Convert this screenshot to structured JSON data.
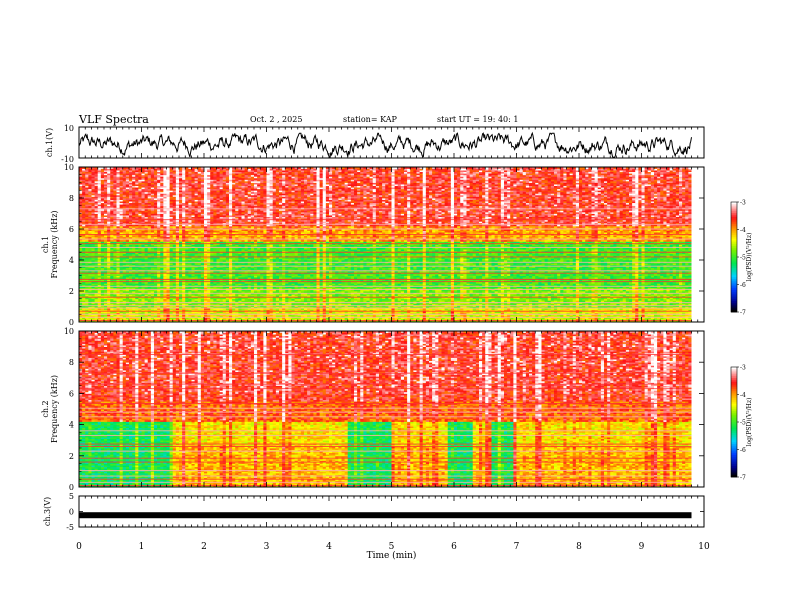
{
  "header": {
    "title": "VLF Spectra",
    "date": "Oct. 2 , 2025",
    "station": "station= KAP",
    "start": "start UT =  19: 40: 1"
  },
  "chart_data": [
    {
      "type": "line",
      "panel": "ch1-waveform",
      "ylabel": "ch.1(V)",
      "ylim": [
        -10,
        10
      ],
      "yticks": [
        10,
        -10
      ],
      "xlim": [
        0,
        10
      ],
      "data_end_min": 9.8,
      "color": "#000000"
    },
    {
      "type": "heatmap",
      "panel": "ch1-spectrogram",
      "ylabel": "ch.1 Frequency (kHz)",
      "ylim": [
        0,
        10
      ],
      "yticks": [
        0,
        2,
        4,
        6,
        8,
        10
      ],
      "xlim": [
        0,
        10
      ],
      "data_end_min": 9.8,
      "colorbar": {
        "label": "log(PSD)(V²/Hz)",
        "ticks": [
          -3,
          -4,
          -5,
          -6,
          -7
        ],
        "range": [
          -7,
          -3
        ]
      },
      "lines_khz": [
        0.1,
        0.3,
        0.5,
        0.7,
        0.9,
        1.05,
        1.25,
        1.6,
        1.85,
        2.1,
        2.3,
        2.6,
        2.75,
        3.15,
        3.3,
        3.6,
        3.85,
        4.2,
        4.5,
        4.8,
        5.05,
        5.35,
        5.65,
        6.0,
        6.3,
        6.6,
        7.3
      ]
    },
    {
      "type": "heatmap",
      "panel": "ch2-spectrogram",
      "ylabel": "ch.2 Frequency (kHz)",
      "ylim": [
        0,
        10
      ],
      "yticks": [
        0,
        2,
        4,
        6,
        8,
        10
      ],
      "xlim": [
        0,
        10
      ],
      "data_end_min": 9.8,
      "colorbar": {
        "label": "log(PSD)(V²/Hz)",
        "ticks": [
          -3,
          -4,
          -5,
          -6,
          -7
        ],
        "range": [
          -7,
          -3
        ]
      },
      "quiet_segments_min": [
        [
          0,
          1.5
        ],
        [
          4.3,
          5.0
        ],
        [
          5.9,
          6.3
        ],
        [
          6.6,
          6.95
        ]
      ],
      "lines_khz": [
        0.1,
        0.3,
        0.5,
        0.7,
        1.05,
        1.6,
        1.85,
        2.3,
        2.6,
        2.75,
        3.3,
        3.6,
        4.5,
        4.8,
        5.05,
        5.35,
        6.3,
        6.6,
        7.3,
        8.5
      ]
    },
    {
      "type": "line",
      "panel": "ch3-waveform",
      "ylabel": "ch.3(V)",
      "ylim": [
        -5,
        5
      ],
      "yticks": [
        5,
        0,
        -5
      ],
      "xlim": [
        0,
        10
      ],
      "data_end_min": 9.8,
      "level_v": -1.2,
      "color": "#000000"
    }
  ],
  "xaxis": {
    "label": "Time (min)",
    "ticks": [
      "0",
      "1",
      "2",
      "3",
      "4",
      "5",
      "6",
      "7",
      "8",
      "9",
      "10"
    ]
  }
}
